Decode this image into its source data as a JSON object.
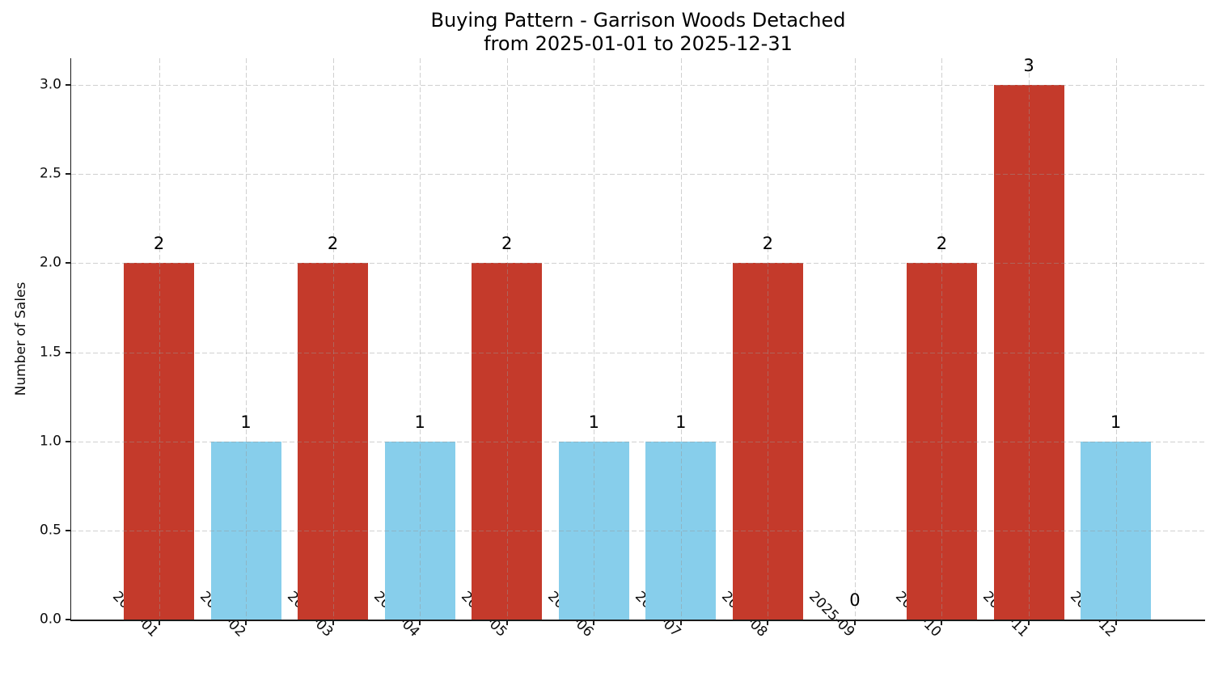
{
  "title": {
    "line1": "Buying Pattern - Garrison Woods Detached",
    "line2": "from 2025-01-01 to 2025-12-31"
  },
  "chart_data": {
    "type": "bar",
    "title": "Buying Pattern - Garrison Woods Detached\nfrom 2025-01-01 to 2025-12-31",
    "xlabel": "",
    "ylabel": "Number of Sales",
    "categories": [
      "2025-01",
      "2025-02",
      "2025-03",
      "2025-04",
      "2025-05",
      "2025-06",
      "2025-07",
      "2025-08",
      "2025-09",
      "2025-10",
      "2025-11",
      "2025-12"
    ],
    "values": [
      2,
      1,
      2,
      1,
      2,
      1,
      1,
      2,
      0,
      2,
      3,
      1
    ],
    "value_labels": [
      "2",
      "1",
      "2",
      "1",
      "2",
      "1",
      "1",
      "2",
      "0",
      "2",
      "3",
      "1"
    ],
    "bar_colors": [
      "#c43a2b",
      "#87ceeb",
      "#c43a2b",
      "#87ceeb",
      "#c43a2b",
      "#87ceeb",
      "#87ceeb",
      "#c43a2b",
      null,
      "#c43a2b",
      "#c43a2b",
      "#87ceeb"
    ],
    "ylim": [
      0,
      3.15
    ],
    "yticks": [
      0.0,
      0.5,
      1.0,
      1.5,
      2.0,
      2.5,
      3.0
    ],
    "ytick_labels": [
      "0.0",
      "0.5",
      "1.0",
      "1.5",
      "2.0",
      "2.5",
      "3.0"
    ],
    "grid": true,
    "grid_style": "dashed",
    "legend": "none",
    "colors": {
      "high_sales_bar": "#c43a2b",
      "low_sales_bar": "#87ceeb",
      "gridline": "#d9d9d9",
      "axis": "#1a1a1a",
      "text": "#000000",
      "background": "#ffffff"
    }
  }
}
